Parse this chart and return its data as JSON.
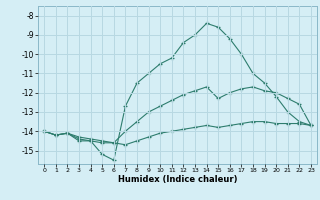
{
  "xlabel": "Humidex (Indice chaleur)",
  "bg_color": "#d5eef5",
  "grid_color": "#b8d8e2",
  "line_color": "#2e7d6e",
  "x_values": [
    0,
    1,
    2,
    3,
    4,
    5,
    6,
    7,
    8,
    9,
    10,
    11,
    12,
    13,
    14,
    15,
    16,
    17,
    18,
    19,
    20,
    21,
    22,
    23
  ],
  "line_top": [
    -14.0,
    -14.2,
    -14.1,
    -14.5,
    -14.5,
    -15.2,
    -15.5,
    -12.7,
    -11.5,
    -11.0,
    -10.5,
    -10.2,
    -9.4,
    -9.0,
    -8.4,
    -8.6,
    -9.2,
    -10.0,
    -11.0,
    -11.5,
    -12.2,
    -13.0,
    -13.5,
    -13.7
  ],
  "line_mid": [
    -14.0,
    -14.2,
    -14.1,
    -14.3,
    -14.4,
    -14.5,
    -14.6,
    -14.0,
    -13.5,
    -13.0,
    -12.7,
    -12.4,
    -12.1,
    -11.9,
    -11.7,
    -12.3,
    -12.0,
    -11.8,
    -11.7,
    -11.9,
    -12.0,
    -12.3,
    -12.6,
    -13.7
  ],
  "line_bot": [
    -14.0,
    -14.2,
    -14.1,
    -14.4,
    -14.5,
    -14.6,
    -14.6,
    -14.7,
    -14.5,
    -14.3,
    -14.1,
    -14.0,
    -13.9,
    -13.8,
    -13.7,
    -13.8,
    -13.7,
    -13.6,
    -13.5,
    -13.5,
    -13.6,
    -13.6,
    -13.6,
    -13.7
  ],
  "ylim": [
    -15.7,
    -7.5
  ],
  "xlim": [
    -0.5,
    23.5
  ],
  "yticks": [
    -8,
    -9,
    -10,
    -11,
    -12,
    -13,
    -14,
    -15
  ],
  "xticks": [
    0,
    1,
    2,
    3,
    4,
    5,
    6,
    7,
    8,
    9,
    10,
    11,
    12,
    13,
    14,
    15,
    16,
    17,
    18,
    19,
    20,
    21,
    22,
    23
  ]
}
